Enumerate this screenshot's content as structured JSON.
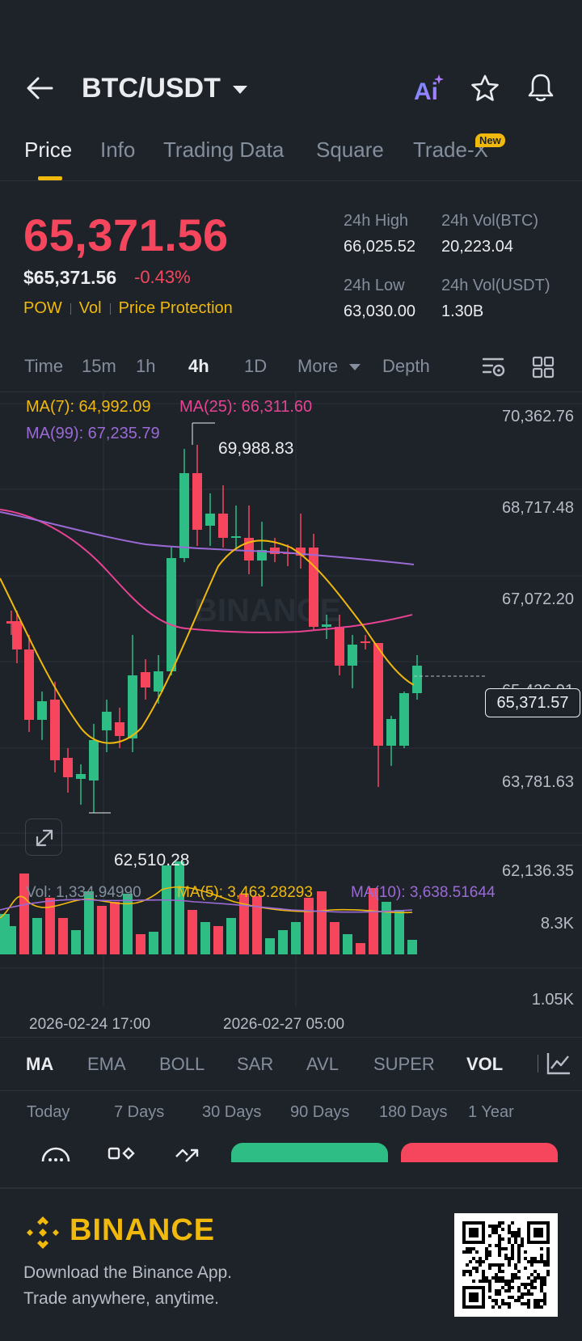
{
  "header": {
    "back_icon": "arrow-left-icon",
    "pair": "BTC/USDT",
    "ai_label": "Ai",
    "star_icon": "star-icon",
    "bell_icon": "bell-icon"
  },
  "tabs": [
    {
      "label": "Price",
      "active": true
    },
    {
      "label": "Info",
      "active": false
    },
    {
      "label": "Trading Data",
      "active": false
    },
    {
      "label": "Square",
      "active": false
    },
    {
      "label": "Trade-X",
      "active": false
    }
  ],
  "new_badge": "New",
  "price": {
    "last": "65,371.56",
    "usd": "$65,371.56",
    "change": "-0.43%",
    "tags": [
      "POW",
      "Vol",
      "Price Protection"
    ]
  },
  "stats": {
    "high_label": "24h High",
    "high": "66,025.52",
    "vol_btc_label": "24h Vol(BTC)",
    "vol_btc": "20,223.04",
    "low_label": "24h Low",
    "low": "63,030.00",
    "vol_usdt_label": "24h Vol(USDT)",
    "vol_usdt": "1.30B"
  },
  "timeframes": [
    "Time",
    "15m",
    "1h",
    "4h",
    "1D",
    "More",
    "Depth"
  ],
  "active_timeframe": "4h",
  "chart": {
    "ma7": "MA(7): 64,992.09",
    "ma25": "MA(25): 66,311.60",
    "ma99": "MA(99): 67,235.79",
    "y_labels": [
      "70,362.76",
      "68,717.48",
      "67,072.20",
      "65,426.91",
      "63,781.63",
      "62,136.35"
    ],
    "current_price": "65,371.57",
    "high_mark": "69,988.83",
    "low_mark": "62,510.28",
    "watermark": "BINANCE",
    "vol_label": "Vol: 1,334.94990",
    "vol_ma5": "MA(5): 3,463.28293",
    "vol_ma10": "MA(10): 3,638.51644",
    "vol_y_labels": [
      "8.3K",
      "1.05K"
    ],
    "x_labels": [
      "2026-02-24 17:00",
      "2026-02-27 05:00"
    ],
    "colors": {
      "up": "#2ebd85",
      "down": "#f6465d",
      "ma7": "#f0b90b",
      "ma25": "#e84393",
      "ma99": "#9b6ad6"
    }
  },
  "indicators": [
    "MA",
    "EMA",
    "BOLL",
    "SAR",
    "AVL",
    "SUPER",
    "VOL"
  ],
  "active_indicators": [
    "MA",
    "VOL"
  ],
  "ranges": [
    "Today",
    "7 Days",
    "30 Days",
    "90 Days",
    "180 Days",
    "1 Year"
  ],
  "footer": {
    "brand": "BINANCE",
    "line1": "Download the Binance App.",
    "line2": "Trade anywhere, anytime."
  }
}
